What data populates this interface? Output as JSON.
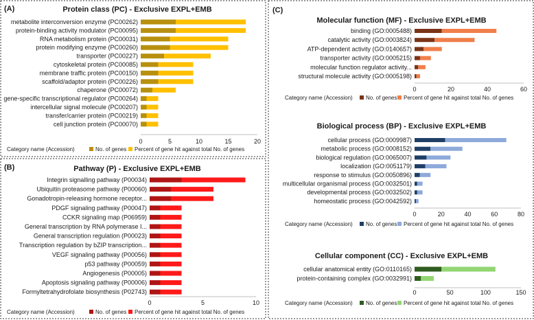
{
  "panels": {
    "A": "(A)",
    "B": "(B)",
    "C": "(C)"
  },
  "legend_category_label": "Category name (Accession)",
  "chart_data": [
    {
      "id": "pc",
      "type": "bar",
      "orientation": "horizontal",
      "stacked": true,
      "title": "Protein class (PC) - Exclusive EXPL+EMB",
      "categories": [
        "metabolite interconversion enzyme (PC00262)",
        "protein-binding activity modulator (PC00095)",
        "RNA metabolism protein (PC00031)",
        "protein modifying enzyme (PC00260)",
        "transporter (PC00227)",
        "cytoskeletal protein (PC00085)",
        "membrane traffic protein (PC00150)",
        "scaffold/adaptor protein (PC00226)",
        "chaperone (PC00072)",
        "gene-specific transcriptional regulator (PC00264)",
        "intercellular signal molecule (PC00207)",
        "transfer/carrier protein (PC00219)",
        "cell junction protein (PC00070)"
      ],
      "series": [
        {
          "name": "No. of genes",
          "color": "#b8900f",
          "values": [
            6,
            6,
            5,
            5,
            4,
            3,
            3,
            3,
            2,
            1,
            1,
            1,
            1
          ]
        },
        {
          "name": "Percent of gene hit against total No. of genes",
          "color": "#ffc000",
          "values": [
            12,
            12,
            10,
            10,
            8,
            6,
            6,
            6,
            4,
            2,
            2,
            2,
            2
          ]
        }
      ],
      "xlim": [
        0,
        20
      ],
      "xticks": [
        0,
        5,
        10,
        15,
        20
      ]
    },
    {
      "id": "pathway",
      "type": "bar",
      "orientation": "horizontal",
      "stacked": true,
      "title": "Pathway (P) - Exclusive EXPL+EMB",
      "categories": [
        "Integrin signalling pathway (P00034)",
        "Ubiquitin proteasome pathway (P00060)",
        "Gonadotropin-releasing hormone receptor...",
        "PDGF signaling pathway (P00047)",
        "CCKR signaling map (P06959)",
        "General transcription by RNA polymerase I...",
        "General transcription regulation (P00023)",
        "Transcription regulation by bZIP transcription...",
        "VEGF signaling pathway (P00056)",
        "p53 pathway (P00059)",
        "Angiogenesis (P00005)",
        "Apoptosis signaling pathway (P00006)",
        "Formyltetrahydrofolate biosynthesis (P02743)"
      ],
      "series": [
        {
          "name": "No. of genes",
          "color": "#b01515",
          "values": [
            3,
            2,
            2,
            1,
            1,
            1,
            1,
            1,
            1,
            1,
            1,
            1,
            1
          ]
        },
        {
          "name": "Percent of gene hit against total No. of genes",
          "color": "#ff1a1a",
          "values": [
            6,
            4,
            4,
            2,
            2,
            2,
            2,
            2,
            2,
            2,
            2,
            2,
            2
          ]
        }
      ],
      "xlim": [
        0,
        10
      ],
      "xticks": [
        0,
        5,
        10
      ]
    },
    {
      "id": "mf",
      "type": "bar",
      "orientation": "horizontal",
      "stacked": true,
      "title": "Molecular function (MF) - Exclusive EXPL+EMB",
      "categories": [
        "binding (GO:0005488)",
        "catalytic activity (GO:0003824)",
        "ATP-dependent activity (GO:0140657)",
        "transporter activity (GO:0005215)",
        "molecular function regulator activity...",
        "structural molecule activity (GO:0005198)"
      ],
      "series": [
        {
          "name": "No. of genes",
          "color": "#7a3418",
          "values": [
            15,
            11,
            5,
            3,
            2,
            1
          ]
        },
        {
          "name": "Percent of gene hit against total No. of genes",
          "color": "#f07f4a",
          "values": [
            30,
            22,
            10,
            6,
            4,
            2
          ]
        }
      ],
      "xlim": [
        0,
        60
      ],
      "xticks": [
        0,
        20,
        40,
        60
      ]
    },
    {
      "id": "bp",
      "type": "bar",
      "orientation": "horizontal",
      "stacked": true,
      "title": "Biological process (BP) - Exclusive EXPL+EMB",
      "categories": [
        "cellular process (GO:0009987)",
        "metabolic process (GO:0008152)",
        "biological regulation (GO:0065007)",
        "localization (GO:0051179)",
        "response to stimulus (GO:0050896)",
        "multicellular organismal process (GO:0032501)",
        "developmental process (GO:0032502)",
        "homeostatic process (GO:0042592)"
      ],
      "series": [
        {
          "name": "No. of genes",
          "color": "#1f3f66",
          "values": [
            23,
            12,
            9,
            8,
            4,
            2,
            2,
            1
          ]
        },
        {
          "name": "Percent of gene hit against total No. of genes",
          "color": "#8eaadb",
          "values": [
            46,
            24,
            18,
            16,
            8,
            4,
            4,
            2
          ]
        }
      ],
      "xlim": [
        0,
        80
      ],
      "xticks": [
        0,
        20,
        40,
        60,
        80
      ]
    },
    {
      "id": "cc",
      "type": "bar",
      "orientation": "horizontal",
      "stacked": true,
      "title": "Cellular component (CC) - Exclusive EXPL+EMB",
      "categories": [
        "cellular anatomical entity (GO:0110165)",
        "protein-containing complex (GO:0032991)"
      ],
      "series": [
        {
          "name": "No. of genes",
          "color": "#2f5d1f",
          "values": [
            38,
            9
          ]
        },
        {
          "name": "Percent of gene hit against total No. of genes",
          "color": "#92d673",
          "values": [
            76,
            18
          ]
        }
      ],
      "xlim": [
        0,
        150
      ],
      "xticks": [
        0,
        50,
        100,
        150
      ]
    }
  ]
}
